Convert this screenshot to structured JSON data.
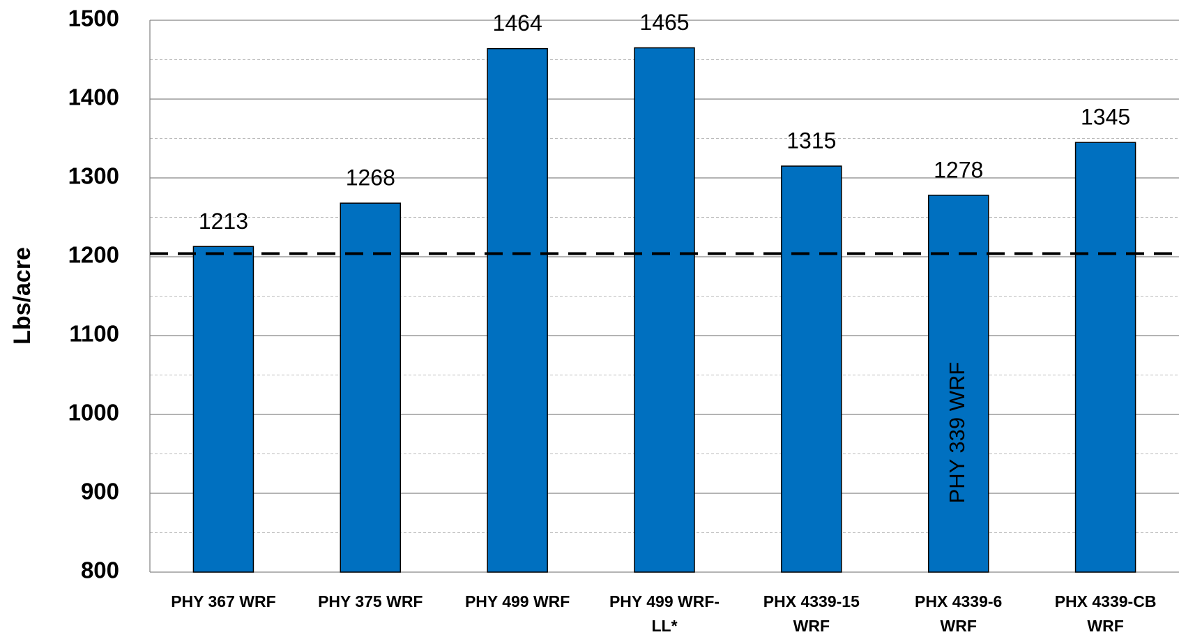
{
  "chart_data": {
    "type": "bar",
    "y_label": "Lbs/acre",
    "categories": [
      [
        "PHY 367 WRF"
      ],
      [
        "PHY 375 WRF"
      ],
      [
        "PHY 499 WRF"
      ],
      [
        "PHY 499 WRF-",
        "LL*"
      ],
      [
        "PHX 4339-15",
        "WRF"
      ],
      [
        "PHX 4339-6",
        "WRF"
      ],
      [
        "PHX 4339-CB",
        "WRF"
      ]
    ],
    "values": [
      1213,
      1268,
      1464,
      1465,
      1315,
      1278,
      1345
    ],
    "color": "#0070c0",
    "ylim": [
      800,
      1500
    ],
    "yticks": [
      800,
      900,
      1000,
      1100,
      1200,
      1300,
      1400,
      1500
    ],
    "minor_yticks": [
      850,
      950,
      1050,
      1150,
      1250,
      1350,
      1450
    ],
    "grid": true,
    "reference_line": {
      "value": 1204,
      "label": "PHY 339 WRF"
    }
  }
}
